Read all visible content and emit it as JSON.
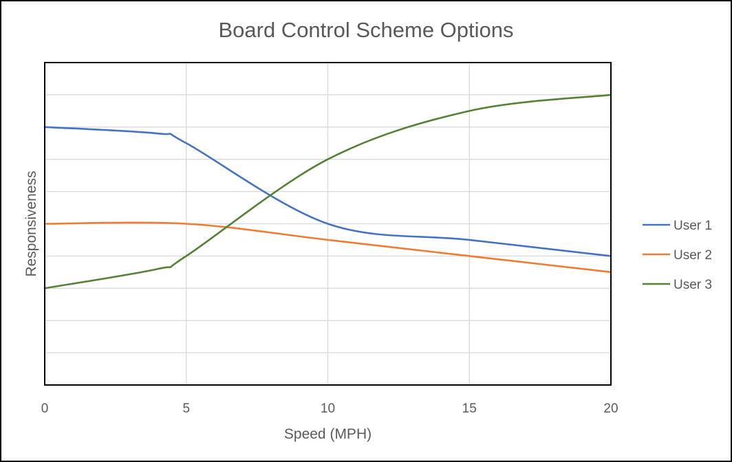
{
  "chart_data": {
    "type": "line",
    "title": "Board Control Scheme Options",
    "xlabel": "Speed (MPH)",
    "ylabel": "Responsiveness",
    "x_ticks": [
      0,
      5,
      10,
      15,
      20
    ],
    "xlim": [
      0,
      20
    ],
    "ylim": [
      0,
      10
    ],
    "y_grid_step": 1,
    "show_y_tick_labels": false,
    "grid": true,
    "smooth": true,
    "legend": "right",
    "series": [
      {
        "name": "User 1",
        "color": "#4472c4",
        "x": [
          0,
          4,
          5,
          10,
          15,
          20
        ],
        "y": [
          8,
          7.8,
          7.5,
          5,
          4.5,
          4
        ]
      },
      {
        "name": "User 2",
        "color": "#ed7d31",
        "x": [
          0,
          5,
          10,
          15,
          20
        ],
        "y": [
          5,
          5,
          4.5,
          4,
          3.5
        ]
      },
      {
        "name": "User 3",
        "color": "#548235",
        "x": [
          0,
          4,
          5,
          10,
          15,
          20
        ],
        "y": [
          3,
          3.6,
          4,
          7,
          8.5,
          9
        ]
      }
    ]
  }
}
